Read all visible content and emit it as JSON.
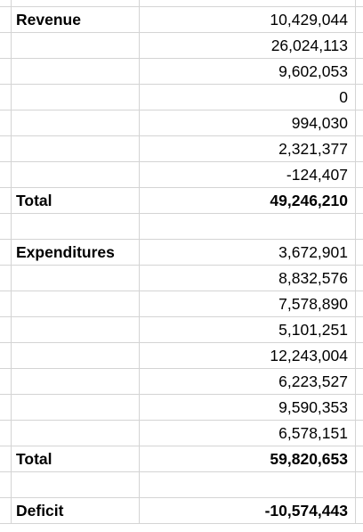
{
  "sheet": {
    "rows": [
      {
        "label": "Revenue",
        "value": "10,429,044",
        "bold_label": true,
        "bold_value": false
      },
      {
        "label": "",
        "value": "26,024,113",
        "bold_label": false,
        "bold_value": false
      },
      {
        "label": "",
        "value": "9,602,053",
        "bold_label": false,
        "bold_value": false
      },
      {
        "label": "",
        "value": "0",
        "bold_label": false,
        "bold_value": false
      },
      {
        "label": "",
        "value": "994,030",
        "bold_label": false,
        "bold_value": false
      },
      {
        "label": "",
        "value": "2,321,377",
        "bold_label": false,
        "bold_value": false
      },
      {
        "label": "",
        "value": "-124,407",
        "bold_label": false,
        "bold_value": false
      },
      {
        "label": "Total",
        "value": "49,246,210",
        "bold_label": true,
        "bold_value": true
      },
      {
        "label": "",
        "value": "",
        "bold_label": false,
        "bold_value": false
      },
      {
        "label": "Expenditures",
        "value": "3,672,901",
        "bold_label": true,
        "bold_value": false
      },
      {
        "label": "",
        "value": "8,832,576",
        "bold_label": false,
        "bold_value": false
      },
      {
        "label": "",
        "value": "7,578,890",
        "bold_label": false,
        "bold_value": false
      },
      {
        "label": "",
        "value": "5,101,251",
        "bold_label": false,
        "bold_value": false
      },
      {
        "label": "",
        "value": "12,243,004",
        "bold_label": false,
        "bold_value": false
      },
      {
        "label": "",
        "value": "6,223,527",
        "bold_label": false,
        "bold_value": false
      },
      {
        "label": "",
        "value": "9,590,353",
        "bold_label": false,
        "bold_value": false
      },
      {
        "label": "",
        "value": "6,578,151",
        "bold_label": false,
        "bold_value": false
      },
      {
        "label": "Total",
        "value": "59,820,653",
        "bold_label": true,
        "bold_value": true
      },
      {
        "label": "",
        "value": "",
        "bold_label": false,
        "bold_value": false
      },
      {
        "label": "Deficit",
        "value": "-10,574,443",
        "bold_label": true,
        "bold_value": true
      }
    ]
  },
  "colors": {
    "gridline": "#d4d4d4",
    "text": "#000000",
    "background": "#ffffff"
  }
}
